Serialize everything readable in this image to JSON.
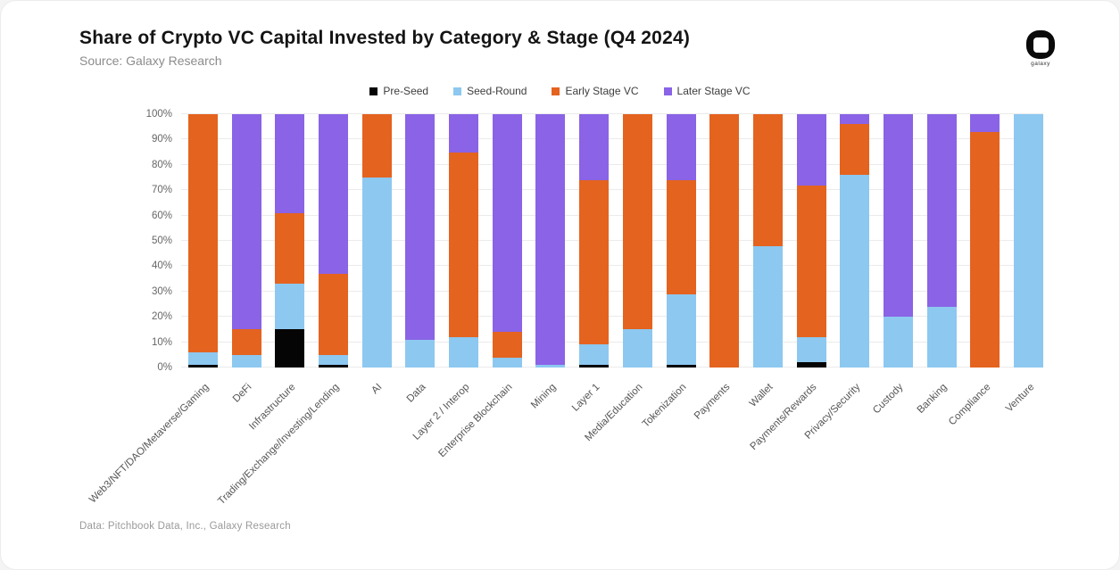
{
  "header": {
    "title": "Share of Crypto VC Capital Invested by Category & Stage (Q4 2024)",
    "source": "Source: Galaxy Research",
    "logo_label": "galaxy"
  },
  "footer": {
    "credit": "Data: Pitchbook Data, Inc., Galaxy Research"
  },
  "colors": {
    "pre_seed": "#050505",
    "seed_round": "#8DC8F0",
    "early_stage": "#E4631F",
    "later_stage": "#8A63E6",
    "grid": "#ebebeb",
    "axis_text": "#666666"
  },
  "chart_data": {
    "type": "bar",
    "stacked": true,
    "stack_unit": "percent",
    "title": "Share of Crypto VC Capital Invested by Category & Stage (Q4 2024)",
    "ylim": [
      0,
      100
    ],
    "yticks": [
      "0%",
      "10%",
      "20%",
      "30%",
      "40%",
      "50%",
      "60%",
      "70%",
      "80%",
      "90%",
      "100%"
    ],
    "grid": "horizontal",
    "legend_position": "top-center",
    "categories": [
      "Web3/NFT/DAO/Metaverse/Gaming",
      "DeFi",
      "Infrastructure",
      "Trading/Exchange/Investing/Lending",
      "AI",
      "Data",
      "Layer 2 / Interop",
      "Enterprise Blockchain",
      "Mining",
      "Layer 1",
      "Media/Education",
      "Tokenization",
      "Payments",
      "Wallet",
      "Payments/Rewards",
      "Privacy/Security",
      "Custody",
      "Banking",
      "Compliance",
      "Venture"
    ],
    "series": [
      {
        "name": "Pre-Seed",
        "color": "#050505",
        "values": [
          1,
          0,
          15,
          1,
          0,
          0,
          0,
          0,
          0,
          1,
          0,
          1,
          0,
          0,
          2,
          0,
          0,
          0,
          0,
          0
        ]
      },
      {
        "name": "Seed-Round",
        "color": "#8DC8F0",
        "values": [
          5,
          5,
          18,
          4,
          75,
          11,
          12,
          4,
          1,
          8,
          15,
          28,
          0,
          48,
          10,
          76,
          20,
          24,
          0,
          100
        ]
      },
      {
        "name": "Early Stage VC",
        "color": "#E4631F",
        "values": [
          94,
          10,
          28,
          32,
          25,
          0,
          73,
          10,
          0,
          65,
          85,
          45,
          100,
          52,
          60,
          20,
          0,
          0,
          93,
          0
        ]
      },
      {
        "name": "Later Stage VC",
        "color": "#8A63E6",
        "values": [
          0,
          85,
          39,
          63,
          0,
          89,
          15,
          86,
          99,
          26,
          0,
          26,
          0,
          0,
          28,
          4,
          80,
          76,
          7,
          0
        ]
      }
    ]
  }
}
